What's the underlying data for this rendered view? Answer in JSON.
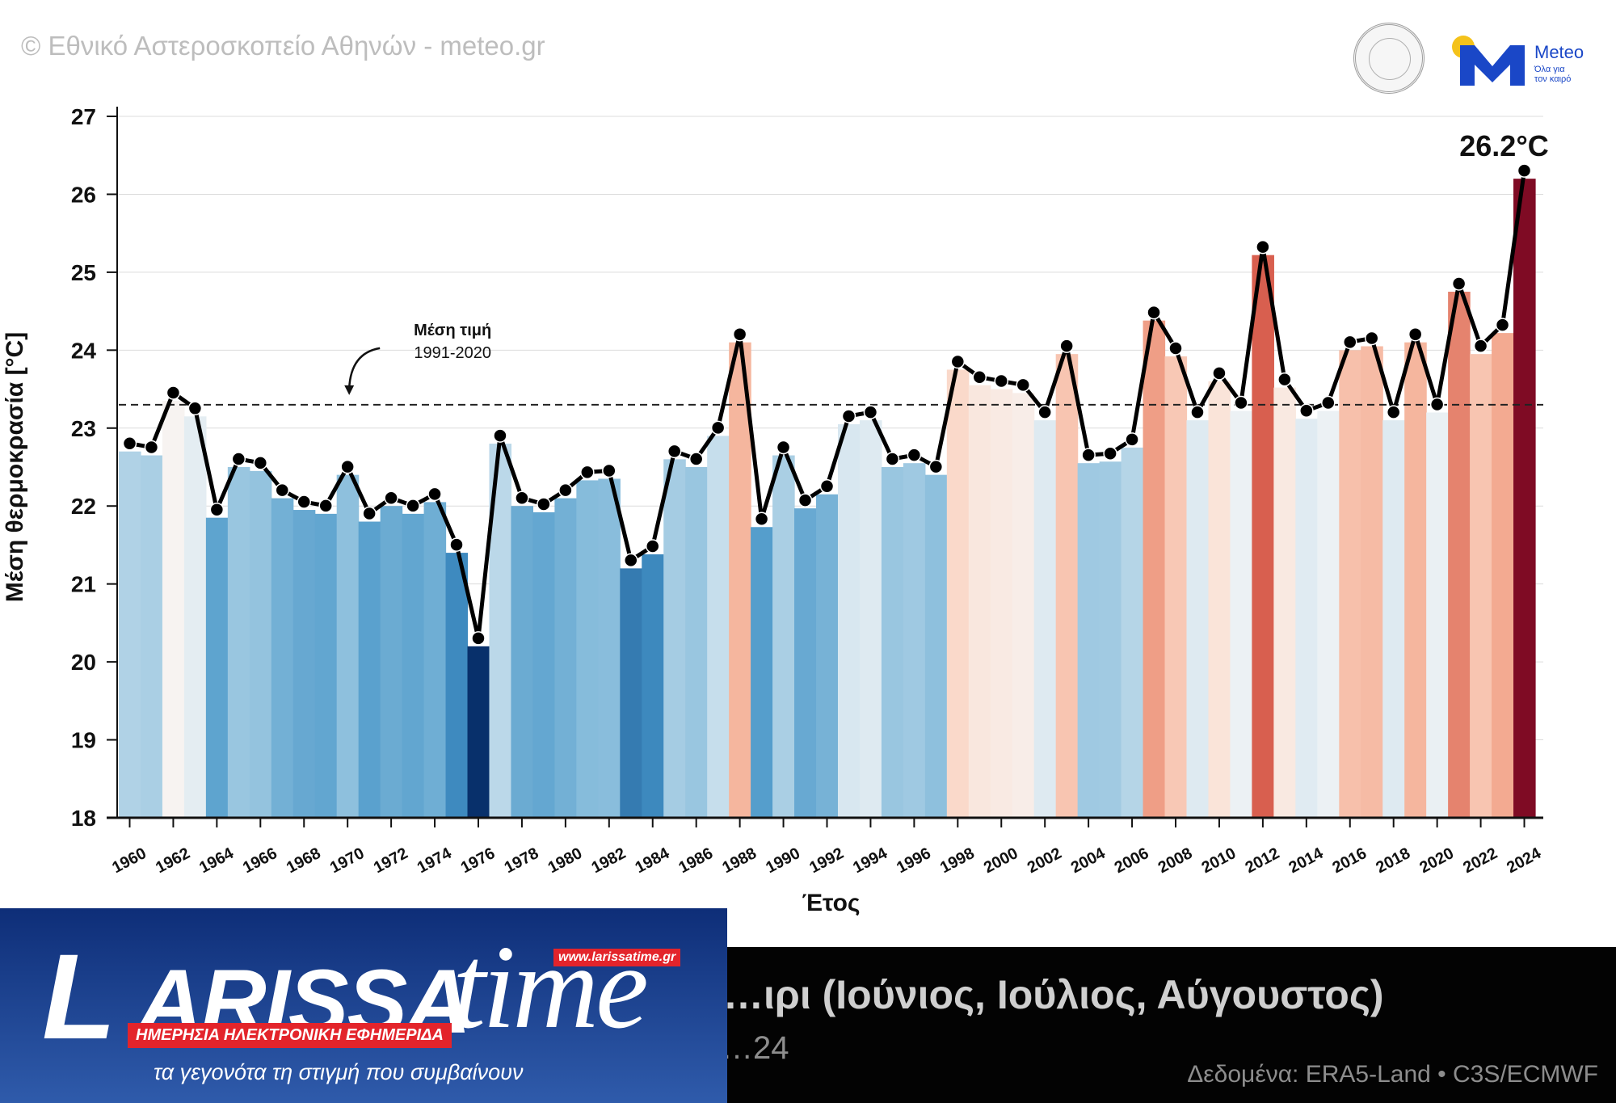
{
  "header": {
    "copyright": "© Εθνικό Αστεροσκοπείο Αθηνών - meteo.gr",
    "brand_word": "Meteo",
    "brand_tagline_1": "Όλα για",
    "brand_tagline_2": "τον καιρό"
  },
  "colors": {
    "mean_line": "#111111",
    "cold_extreme": "#08306b",
    "warm_extreme": "#7f0b24"
  },
  "chart_data": {
    "type": "bar",
    "title": "…ιρι (Ιούνιος, Ιούλιος, Αύγουστος)",
    "subtitle": "…24",
    "xlabel": "Έτος",
    "ylabel": "Μέση θερμοκρασία [°C]",
    "ylim": [
      18,
      27
    ],
    "yticks": [
      18,
      19,
      20,
      21,
      22,
      23,
      24,
      25,
      26,
      27
    ],
    "grid": "horizontal",
    "x": [
      1960,
      1961,
      1962,
      1963,
      1964,
      1965,
      1966,
      1967,
      1968,
      1969,
      1970,
      1971,
      1972,
      1973,
      1974,
      1975,
      1976,
      1977,
      1978,
      1979,
      1980,
      1981,
      1982,
      1983,
      1984,
      1985,
      1986,
      1987,
      1988,
      1989,
      1990,
      1991,
      1992,
      1993,
      1994,
      1995,
      1996,
      1997,
      1998,
      1999,
      2000,
      2001,
      2002,
      2003,
      2004,
      2005,
      2006,
      2007,
      2008,
      2009,
      2010,
      2011,
      2012,
      2013,
      2014,
      2015,
      2016,
      2017,
      2018,
      2019,
      2020,
      2021,
      2022,
      2023,
      2024
    ],
    "xtick_labels": [
      "1960",
      "1962",
      "1964",
      "1966",
      "1968",
      "1970",
      "1972",
      "1974",
      "1976",
      "1978",
      "1980",
      "1982",
      "1984",
      "1986",
      "1988",
      "1990",
      "1992",
      "1994",
      "1996",
      "1998",
      "2000",
      "2002",
      "2004",
      "2006",
      "2008",
      "2010",
      "2012",
      "2014",
      "2016",
      "2018",
      "2020",
      "2022",
      "2024"
    ],
    "values": [
      22.7,
      22.65,
      23.35,
      23.15,
      21.85,
      22.5,
      22.45,
      22.1,
      21.95,
      21.9,
      22.4,
      21.8,
      22.0,
      21.9,
      22.05,
      21.4,
      20.2,
      22.8,
      22.0,
      21.92,
      22.1,
      22.33,
      22.35,
      21.2,
      21.38,
      22.6,
      22.5,
      22.9,
      24.1,
      21.73,
      22.65,
      21.97,
      22.15,
      23.05,
      23.1,
      22.5,
      22.55,
      22.4,
      23.75,
      23.55,
      23.5,
      23.45,
      23.1,
      23.95,
      22.55,
      22.57,
      22.75,
      24.38,
      23.92,
      23.1,
      23.6,
      23.22,
      25.22,
      23.52,
      23.12,
      23.22,
      24.0,
      24.05,
      23.1,
      24.1,
      23.2,
      24.75,
      23.95,
      24.22,
      26.2
    ],
    "annotations": [
      {
        "text": "26.2°C",
        "year": 2024
      },
      {
        "text": "Μέση τιμή",
        "line2": "1991-2020",
        "value": 23.3
      }
    ],
    "reference_line": {
      "value": 23.3,
      "style": "dashed"
    },
    "source": "Δεδομένα: ERA5-Land • C3S/ECMWF"
  },
  "brand": {
    "name_l": "L",
    "name_rest": "ARISSA",
    "name_time": "time",
    "url": "www.larissatime.gr",
    "strap": "ΗΜΕΡΗΣΙΑ ΗΛΕΚΤΡΟΝΙΚΗ ΕΦΗΜΕΡΙΔΑ",
    "tagline": "τα γεγονότα τη στιγμή που συμβαίνουν"
  }
}
